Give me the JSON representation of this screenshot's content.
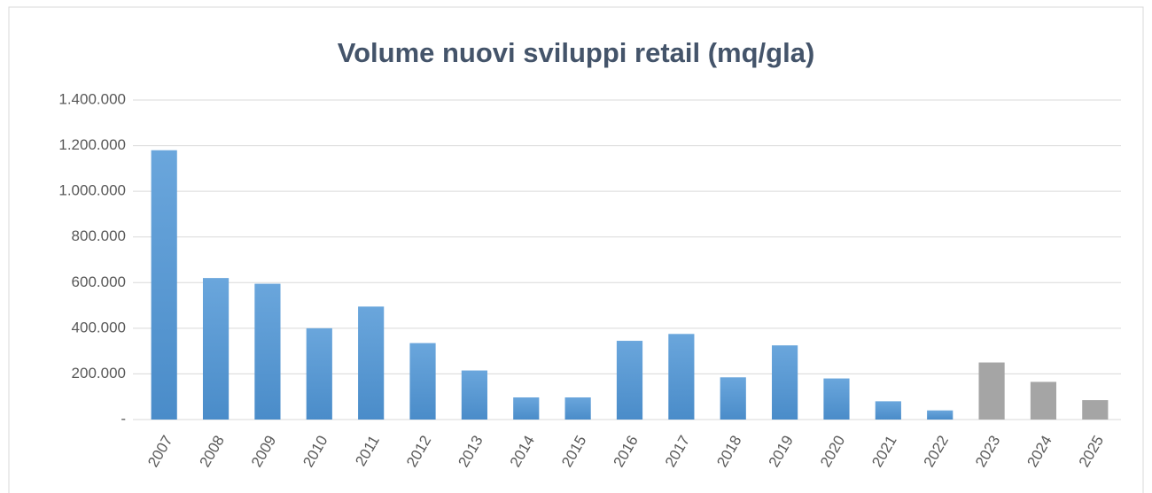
{
  "chart_data": {
    "type": "bar",
    "title": "Volume nuovi sviluppi retail (mq/gla)",
    "categories": [
      "2007",
      "2008",
      "2009",
      "2010",
      "2011",
      "2012",
      "2013",
      "2014",
      "2015",
      "2016",
      "2017",
      "2018",
      "2019",
      "2020",
      "2021",
      "2022",
      "2023",
      "2024",
      "2025"
    ],
    "values": [
      1180000,
      620000,
      595000,
      400000,
      495000,
      335000,
      215000,
      97000,
      97000,
      345000,
      375000,
      185000,
      325000,
      180000,
      80000,
      40000,
      250000,
      165000,
      85000
    ],
    "colors": [
      "#5b9bd5",
      "#5b9bd5",
      "#5b9bd5",
      "#5b9bd5",
      "#5b9bd5",
      "#5b9bd5",
      "#5b9bd5",
      "#5b9bd5",
      "#5b9bd5",
      "#5b9bd5",
      "#5b9bd5",
      "#5b9bd5",
      "#5b9bd5",
      "#5b9bd5",
      "#5b9bd5",
      "#5b9bd5",
      "#a5a5a5",
      "#a5a5a5",
      "#a5a5a5"
    ],
    "ylim": [
      0,
      1400000
    ],
    "yticks": [
      {
        "value": 0,
        "label": "-"
      },
      {
        "value": 200000,
        "label": "200.000"
      },
      {
        "value": 400000,
        "label": "400.000"
      },
      {
        "value": 600000,
        "label": "600.000"
      },
      {
        "value": 800000,
        "label": "800.000"
      },
      {
        "value": 1000000,
        "label": "1.000.000"
      },
      {
        "value": 1200000,
        "label": "1.200.000"
      },
      {
        "value": 1400000,
        "label": "1.400.000"
      }
    ],
    "grid": true
  }
}
